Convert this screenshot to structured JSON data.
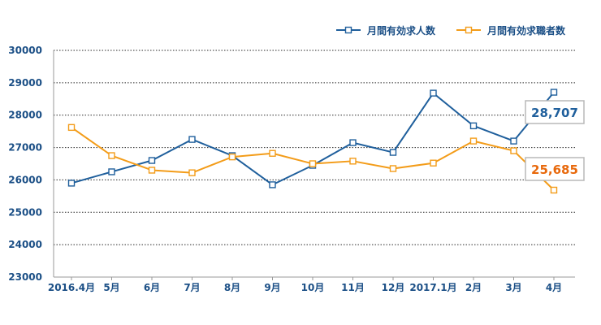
{
  "chart_data": {
    "type": "line",
    "categories": [
      "2016.4月",
      "5月",
      "6月",
      "7月",
      "8月",
      "9月",
      "10月",
      "11月",
      "12月",
      "2017.1月",
      "2月",
      "3月",
      "4月"
    ],
    "series": [
      {
        "name": "月間有効求人数",
        "color": "#1f5f9c",
        "values": [
          25900,
          26250,
          26600,
          27250,
          26750,
          25850,
          26450,
          27150,
          26850,
          28680,
          27670,
          27200,
          28707
        ]
      },
      {
        "name": "月間有効求職者数",
        "color": "#f39c19",
        "values": [
          27620,
          26750,
          26300,
          26220,
          26710,
          26820,
          26500,
          26580,
          26350,
          26520,
          27200,
          26900,
          25685
        ]
      }
    ],
    "ylim": [
      23000,
      30000
    ],
    "yticks": [
      23000,
      24000,
      25000,
      26000,
      27000,
      28000,
      29000,
      30000
    ],
    "grid": "horizontal dotted",
    "legend_position": "top-right",
    "annotations": [
      {
        "series": 0,
        "text": "28,707",
        "color": "#1f5f9c"
      },
      {
        "series": 1,
        "text": "25,685",
        "color": "#e8690c"
      }
    ]
  }
}
